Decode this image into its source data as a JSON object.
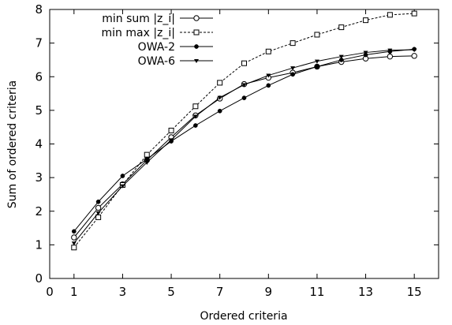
{
  "chart_data": {
    "type": "line",
    "title": "",
    "xlabel": "Ordered criteria",
    "ylabel": "Sum of ordered criteria",
    "xlim": [
      0,
      16
    ],
    "ylim": [
      0,
      8
    ],
    "xticks": [
      0,
      1,
      3,
      5,
      7,
      9,
      11,
      13,
      15
    ],
    "yticks": [
      0,
      1,
      2,
      3,
      4,
      5,
      6,
      7,
      8
    ],
    "grid": false,
    "legend_position": "top-left",
    "x": [
      1,
      2,
      3,
      4,
      5,
      6,
      7,
      8,
      9,
      10,
      11,
      12,
      13,
      14,
      15
    ],
    "series": [
      {
        "name": "min sum |z_i|",
        "line_style": "solid",
        "marker": "open-circle",
        "values": [
          1.22,
          2.1,
          2.8,
          3.52,
          4.2,
          4.85,
          5.35,
          5.78,
          5.97,
          6.12,
          6.3,
          6.44,
          6.54,
          6.6,
          6.62
        ]
      },
      {
        "name": "min max |z_i|",
        "line_style": "dashed",
        "marker": "open-square",
        "values": [
          0.92,
          1.82,
          2.78,
          3.68,
          4.4,
          5.12,
          5.82,
          6.4,
          6.75,
          7.0,
          7.25,
          7.47,
          7.68,
          7.84,
          7.88
        ]
      },
      {
        "name": "OWA-2",
        "line_style": "solid",
        "marker": "filled-circle",
        "values": [
          1.4,
          2.28,
          3.05,
          3.55,
          4.08,
          4.55,
          4.98,
          5.37,
          5.74,
          6.07,
          6.3,
          6.5,
          6.65,
          6.75,
          6.82
        ]
      },
      {
        "name": "OWA-6",
        "line_style": "solid",
        "marker": "filled-triangle-down",
        "values": [
          1.05,
          1.95,
          2.75,
          3.45,
          4.12,
          4.82,
          5.38,
          5.76,
          6.04,
          6.26,
          6.46,
          6.6,
          6.72,
          6.79,
          6.8
        ]
      }
    ]
  }
}
